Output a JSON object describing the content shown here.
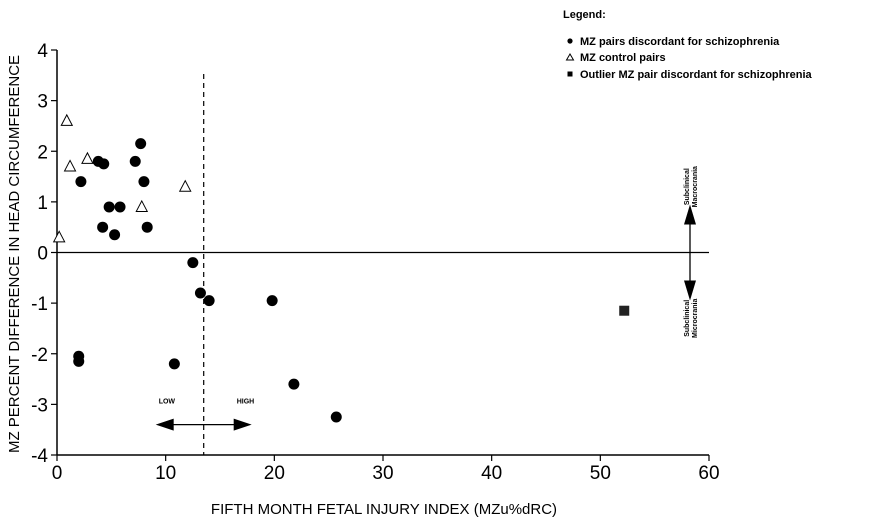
{
  "chart_data": {
    "type": "scatter",
    "xlabel": "FIFTH MONTH FETAL INJURY INDEX (MZu%dRC)",
    "ylabel": "MZ PERCENT DIFFERENCE IN HEAD CIRCUMFERENCE",
    "xlim": [
      0,
      60
    ],
    "ylim": [
      -4,
      4
    ],
    "xticks": [
      0,
      10,
      20,
      30,
      40,
      50,
      60
    ],
    "yticks": [
      -4,
      -3,
      -2,
      -1,
      0,
      1,
      2,
      3,
      4
    ],
    "threshold_x": 13.5,
    "legend": {
      "title": "Legend:",
      "placement": "top-right",
      "entries": [
        {
          "label": "MZ pairs discordant for schizophrenia",
          "marker": "circle"
        },
        {
          "label": "MZ control pairs",
          "marker": "triangle"
        },
        {
          "label": "Outlier MZ pair discordant for schizophrenia",
          "marker": "square"
        }
      ]
    },
    "series": [
      {
        "name": "MZ pairs discordant for schizophrenia",
        "marker": "circle",
        "points": [
          [
            2.2,
            1.4
          ],
          [
            3.8,
            1.8
          ],
          [
            4.3,
            1.75
          ],
          [
            7.2,
            1.8
          ],
          [
            7.7,
            2.15
          ],
          [
            8.0,
            1.4
          ],
          [
            4.2,
            0.5
          ],
          [
            4.8,
            0.9
          ],
          [
            5.3,
            0.35
          ],
          [
            5.8,
            0.9
          ],
          [
            8.3,
            0.5
          ],
          [
            12.5,
            -0.2
          ],
          [
            13.2,
            -0.8
          ],
          [
            14.0,
            -0.95
          ],
          [
            19.8,
            -0.95
          ],
          [
            2.0,
            -2.05
          ],
          [
            2.0,
            -2.15
          ],
          [
            10.8,
            -2.2
          ],
          [
            21.8,
            -2.6
          ],
          [
            25.7,
            -3.25
          ]
        ]
      },
      {
        "name": "MZ control pairs",
        "marker": "triangle",
        "points": [
          [
            0.9,
            2.6
          ],
          [
            1.2,
            1.7
          ],
          [
            2.8,
            1.85
          ],
          [
            7.8,
            0.9
          ],
          [
            11.8,
            1.3
          ],
          [
            0.2,
            0.3
          ]
        ]
      },
      {
        "name": "Outlier MZ pair discordant for schizophrenia",
        "marker": "square",
        "points": [
          [
            52.2,
            -1.15
          ]
        ]
      }
    ],
    "annotations": {
      "low": "LOW",
      "high": "HIGH",
      "up": "Subclinical Macrocrania",
      "down": "Subclinical Microcrania"
    }
  }
}
